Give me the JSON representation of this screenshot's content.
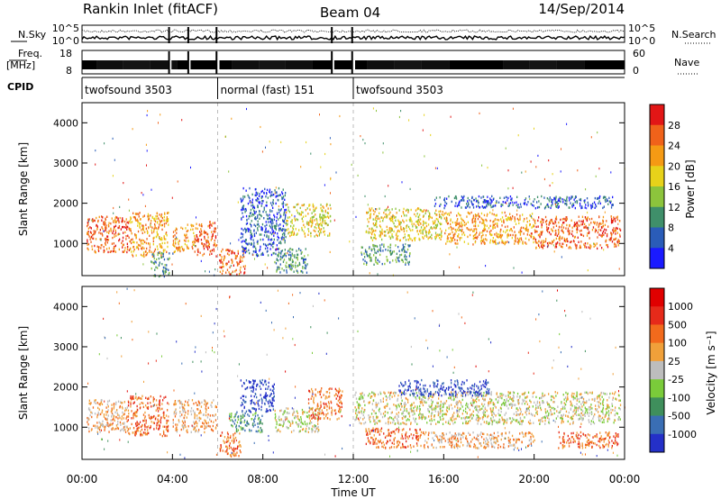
{
  "header": {
    "title": "Rankin Inlet (fitACF)",
    "beam": "Beam 04",
    "date": "14/Sep/2014"
  },
  "strip_panels": {
    "nsky": {
      "label_top": "N.Sky",
      "right_label": "N.Search",
      "ticks_left": [
        "10^5",
        "10^0"
      ],
      "ticks_right": [
        "10^5",
        "10^0"
      ]
    },
    "freq": {
      "label_top": "Freq.",
      "label_unit": "[MHz]",
      "right_label": "Nave",
      "ticks_left": [
        "18",
        "8"
      ],
      "ticks_right": [
        "60",
        "0"
      ]
    },
    "cpid": {
      "label": "CPID",
      "segments": [
        {
          "label": "twofsound 3503",
          "start_hour": 0,
          "end_hour": 6
        },
        {
          "label": "normal (fast) 151",
          "start_hour": 6,
          "end_hour": 12
        },
        {
          "label": "twofsound 3503",
          "start_hour": 12,
          "end_hour": 24
        }
      ]
    },
    "gaps_hours": [
      [
        3.85,
        3.95
      ],
      [
        4.7,
        4.78
      ],
      [
        5.95,
        6.05
      ],
      [
        11.05,
        11.15
      ],
      [
        11.95,
        12.05
      ]
    ]
  },
  "chart_data": [
    {
      "type": "heatmap",
      "id": "power",
      "ylabel": "Slant Range [km]",
      "xlabel": "",
      "ylim": [
        200,
        4500
      ],
      "yticks": [
        "1000",
        "2000",
        "3000",
        "4000"
      ],
      "colorbar_label": "Power [dB]",
      "colorbar_ticks": [
        "4",
        "8",
        "12",
        "16",
        "20",
        "24",
        "28"
      ],
      "colors": [
        "#1a1aff",
        "#2a5cb8",
        "#3f8f6a",
        "#8cc43c",
        "#e7d21a",
        "#f59a14",
        "#f0621a",
        "#e21616"
      ],
      "blobs": [
        {
          "t0": 0.2,
          "t1": 2.1,
          "r0": 800,
          "r1": 1700,
          "level": 6
        },
        {
          "t0": 2.1,
          "t1": 3.8,
          "r0": 700,
          "r1": 1800,
          "level": 5
        },
        {
          "t0": 4.0,
          "t1": 5.0,
          "r0": 800,
          "r1": 1500,
          "level": 5
        },
        {
          "t0": 5.0,
          "t1": 6.0,
          "r0": 700,
          "r1": 1600,
          "level": 6
        },
        {
          "t0": 6.0,
          "t1": 7.2,
          "r0": 250,
          "r1": 900,
          "level": 6
        },
        {
          "t0": 7.0,
          "t1": 9.0,
          "r0": 700,
          "r1": 2400,
          "level": 1
        },
        {
          "t0": 9.0,
          "t1": 11.0,
          "r0": 1200,
          "r1": 2000,
          "level": 4
        },
        {
          "t0": 8.5,
          "t1": 10.0,
          "r0": 300,
          "r1": 900,
          "level": 2
        },
        {
          "t0": 12.5,
          "t1": 16.0,
          "r0": 1100,
          "r1": 1900,
          "level": 4
        },
        {
          "t0": 16.0,
          "t1": 20.0,
          "r0": 1000,
          "r1": 1800,
          "level": 5
        },
        {
          "t0": 20.0,
          "t1": 23.8,
          "r0": 900,
          "r1": 1700,
          "level": 6
        },
        {
          "t0": 12.3,
          "t1": 14.5,
          "r0": 500,
          "r1": 1000,
          "level": 2
        },
        {
          "t0": 15.5,
          "t1": 23.5,
          "r0": 1900,
          "r1": 2200,
          "level": 1
        },
        {
          "t0": 3.0,
          "t1": 4.0,
          "r0": 200,
          "r1": 800,
          "level": 2
        }
      ]
    },
    {
      "type": "heatmap",
      "id": "velocity",
      "ylabel": "Slant Range [km]",
      "xlabel": "Time UT",
      "ylim": [
        200,
        4500
      ],
      "yticks": [
        "1000",
        "2000",
        "3000",
        "4000"
      ],
      "xticks": [
        "00:00",
        "04:00",
        "08:00",
        "12:00",
        "16:00",
        "20:00",
        "00:00"
      ],
      "xlim_hours": [
        0,
        24
      ],
      "colorbar_label": "Velocity [m s⁻¹]",
      "colorbar_ticks": [
        "1000",
        "500",
        "100",
        "25",
        "-25",
        "-100",
        "-500",
        "-1000"
      ],
      "colors": [
        "#2430c8",
        "#3a6eb4",
        "#3f8f5c",
        "#7acb3a",
        "#bdbdbd",
        "#f0a03a",
        "#f26a1c",
        "#e62a1a",
        "#e00000"
      ],
      "blobs": [
        {
          "t0": 0.2,
          "t1": 2.0,
          "r0": 900,
          "r1": 1700,
          "level": 5
        },
        {
          "t0": 2.0,
          "t1": 3.8,
          "r0": 800,
          "r1": 1800,
          "level": 6
        },
        {
          "t0": 4.0,
          "t1": 6.0,
          "r0": 900,
          "r1": 1700,
          "level": 5
        },
        {
          "t0": 6.0,
          "t1": 7.0,
          "r0": 300,
          "r1": 900,
          "level": 6
        },
        {
          "t0": 7.0,
          "t1": 8.5,
          "r0": 1400,
          "r1": 2200,
          "level": 0
        },
        {
          "t0": 8.5,
          "t1": 10.5,
          "r0": 900,
          "r1": 1500,
          "level": 4
        },
        {
          "t0": 10.0,
          "t1": 11.5,
          "r0": 1200,
          "r1": 2000,
          "level": 6
        },
        {
          "t0": 12.0,
          "t1": 23.8,
          "r0": 1100,
          "r1": 1900,
          "level": 4
        },
        {
          "t0": 12.5,
          "t1": 15.0,
          "r0": 500,
          "r1": 1000,
          "level": 6
        },
        {
          "t0": 15.0,
          "t1": 20.0,
          "r0": 500,
          "r1": 900,
          "level": 5
        },
        {
          "t0": 21.0,
          "t1": 23.8,
          "r0": 500,
          "r1": 900,
          "level": 6
        },
        {
          "t0": 14.0,
          "t1": 18.0,
          "r0": 1800,
          "r1": 2200,
          "level": 0
        },
        {
          "t0": 6.5,
          "t1": 8.0,
          "r0": 900,
          "r1": 1400,
          "level": 2
        }
      ]
    }
  ]
}
